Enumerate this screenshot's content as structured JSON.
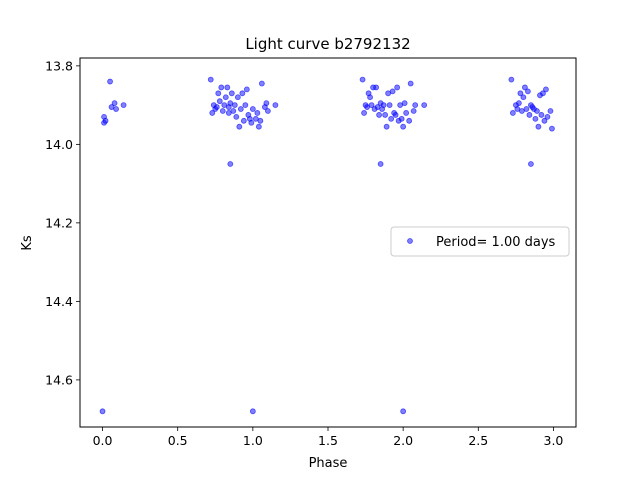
{
  "chart_data": {
    "type": "scatter",
    "title": "Light curve b2792132",
    "xlabel": "Phase",
    "ylabel": "Ks",
    "xlim": [
      -0.15,
      3.15
    ],
    "ylim": [
      14.72,
      13.78
    ],
    "y_inverted": true,
    "xticks": [
      0.0,
      0.5,
      1.0,
      1.5,
      2.0,
      2.5,
      3.0
    ],
    "xtick_labels": [
      "0.0",
      "0.5",
      "1.0",
      "1.5",
      "2.0",
      "2.5",
      "3.0"
    ],
    "yticks": [
      13.8,
      14.0,
      14.2,
      14.4,
      14.6
    ],
    "ytick_labels": [
      "13.8",
      "14.0",
      "14.2",
      "14.4",
      "14.6"
    ],
    "grid": false,
    "legend_position": "center-right",
    "marker_color": "#0000ff",
    "series": [
      {
        "name": "Period= 1.00 days",
        "points": [
          [
            0.01,
            13.93
          ],
          [
            0.01,
            13.945
          ],
          [
            0.02,
            13.94
          ],
          [
            0.05,
            13.84
          ],
          [
            0.06,
            13.905
          ],
          [
            0.08,
            13.895
          ],
          [
            0.09,
            13.91
          ],
          [
            0.14,
            13.9
          ],
          [
            0.0,
            14.68
          ],
          [
            0.72,
            13.835
          ],
          [
            0.73,
            13.92
          ],
          [
            0.74,
            13.9
          ],
          [
            0.75,
            13.91
          ],
          [
            0.76,
            13.905
          ],
          [
            0.77,
            13.87
          ],
          [
            0.78,
            13.89
          ],
          [
            0.79,
            13.855
          ],
          [
            0.8,
            13.915
          ],
          [
            0.81,
            13.9
          ],
          [
            0.82,
            13.88
          ],
          [
            0.83,
            13.855
          ],
          [
            0.84,
            13.905
          ],
          [
            0.84,
            13.92
          ],
          [
            0.85,
            13.895
          ],
          [
            0.86,
            13.87
          ],
          [
            0.87,
            13.915
          ],
          [
            0.88,
            13.9
          ],
          [
            0.89,
            13.93
          ],
          [
            0.9,
            13.88
          ],
          [
            0.91,
            13.955
          ],
          [
            0.92,
            13.91
          ],
          [
            0.93,
            13.87
          ],
          [
            0.94,
            13.94
          ],
          [
            0.95,
            13.9
          ],
          [
            0.96,
            13.86
          ],
          [
            0.97,
            13.925
          ],
          [
            0.98,
            13.935
          ],
          [
            0.99,
            13.945
          ],
          [
            1.0,
            13.91
          ],
          [
            1.02,
            13.935
          ],
          [
            1.03,
            13.92
          ],
          [
            1.04,
            13.955
          ],
          [
            1.05,
            13.94
          ],
          [
            1.06,
            13.845
          ],
          [
            1.08,
            13.905
          ],
          [
            1.09,
            13.895
          ],
          [
            1.1,
            13.915
          ],
          [
            1.15,
            13.9
          ],
          [
            0.85,
            14.05
          ],
          [
            1.0,
            14.68
          ],
          [
            1.73,
            13.835
          ],
          [
            1.74,
            13.92
          ],
          [
            1.75,
            13.9
          ],
          [
            1.76,
            13.905
          ],
          [
            1.77,
            13.87
          ],
          [
            1.78,
            13.88
          ],
          [
            1.79,
            13.9
          ],
          [
            1.8,
            13.855
          ],
          [
            1.81,
            13.91
          ],
          [
            1.82,
            13.855
          ],
          [
            1.83,
            13.905
          ],
          [
            1.84,
            13.925
          ],
          [
            1.85,
            13.895
          ],
          [
            1.86,
            13.91
          ],
          [
            1.87,
            13.9
          ],
          [
            1.88,
            13.925
          ],
          [
            1.89,
            13.955
          ],
          [
            1.9,
            13.87
          ],
          [
            1.91,
            13.9
          ],
          [
            1.92,
            13.935
          ],
          [
            1.93,
            13.865
          ],
          [
            1.94,
            13.92
          ],
          [
            1.95,
            13.925
          ],
          [
            1.96,
            13.855
          ],
          [
            1.97,
            13.94
          ],
          [
            1.98,
            13.9
          ],
          [
            1.99,
            13.935
          ],
          [
            2.0,
            13.955
          ],
          [
            2.01,
            13.895
          ],
          [
            2.02,
            13.92
          ],
          [
            2.04,
            13.94
          ],
          [
            2.05,
            13.845
          ],
          [
            2.07,
            13.915
          ],
          [
            2.08,
            13.9
          ],
          [
            2.14,
            13.9
          ],
          [
            1.85,
            14.05
          ],
          [
            2.0,
            14.68
          ],
          [
            2.72,
            13.835
          ],
          [
            2.73,
            13.92
          ],
          [
            2.75,
            13.9
          ],
          [
            2.76,
            13.91
          ],
          [
            2.77,
            13.895
          ],
          [
            2.78,
            13.87
          ],
          [
            2.79,
            13.915
          ],
          [
            2.8,
            13.88
          ],
          [
            2.81,
            13.855
          ],
          [
            2.82,
            13.91
          ],
          [
            2.83,
            13.865
          ],
          [
            2.84,
            13.925
          ],
          [
            2.85,
            13.9
          ],
          [
            2.86,
            13.905
          ],
          [
            2.87,
            13.91
          ],
          [
            2.88,
            13.935
          ],
          [
            2.89,
            13.915
          ],
          [
            2.9,
            13.955
          ],
          [
            2.91,
            13.875
          ],
          [
            2.92,
            13.925
          ],
          [
            2.93,
            13.87
          ],
          [
            2.94,
            13.94
          ],
          [
            2.95,
            13.86
          ],
          [
            2.96,
            13.93
          ],
          [
            2.98,
            13.915
          ],
          [
            2.99,
            13.96
          ],
          [
            2.85,
            14.05
          ]
        ]
      }
    ]
  }
}
